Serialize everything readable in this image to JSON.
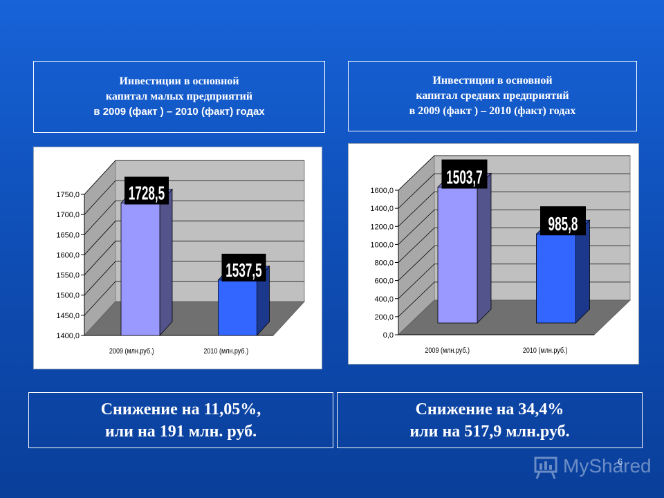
{
  "titles": {
    "left": {
      "line1": "Инвестиции в основной",
      "line2": "капитал малых предприятий",
      "line3": "в 2009 (факт ) – 2010 (факт) годах"
    },
    "right": {
      "line1": "Инвестиции в основной",
      "line2": "капитал средних предприятий",
      "line3": "в 2009 (факт ) – 2010 (факт) годах"
    }
  },
  "chart_data": [
    {
      "type": "bar",
      "categories": [
        "2009 (млн.руб.)",
        "2010 (млн.руб.)"
      ],
      "values": [
        1728.5,
        1537.5
      ],
      "data_labels": [
        "1728,5",
        "1537,5"
      ],
      "ylim": [
        1400,
        1750
      ],
      "yticks": [
        "1400,0",
        "1450,0",
        "1500,0",
        "1550,0",
        "1600,0",
        "1650,0",
        "1700,0",
        "1750,0"
      ],
      "colors": [
        "#9999ff",
        "#3366ff"
      ],
      "grid": true,
      "style": "3d"
    },
    {
      "type": "bar",
      "categories": [
        "2009 (млн.руб.)",
        "2010 (млн.руб.)"
      ],
      "values": [
        1503.7,
        985.8
      ],
      "data_labels": [
        "1503,7",
        "985,8"
      ],
      "ylim": [
        0,
        1600
      ],
      "yticks": [
        "0,0",
        "200,0",
        "400,0",
        "600,0",
        "800,0",
        "1000,0",
        "1200,0",
        "1400,0",
        "1600,0"
      ],
      "colors": [
        "#9999ff",
        "#3366ff"
      ],
      "grid": true,
      "style": "3d"
    }
  ],
  "summaries": {
    "left": {
      "line1": "Снижение на 11,05%,",
      "line2": "или на 191 млн. руб."
    },
    "right": {
      "line1": "Снижение на 34,4%",
      "line2": "или на 517,9 млн.руб."
    }
  },
  "page_number": "6",
  "watermark": {
    "text": "MyShared",
    "icon": "presentation-board-icon"
  }
}
